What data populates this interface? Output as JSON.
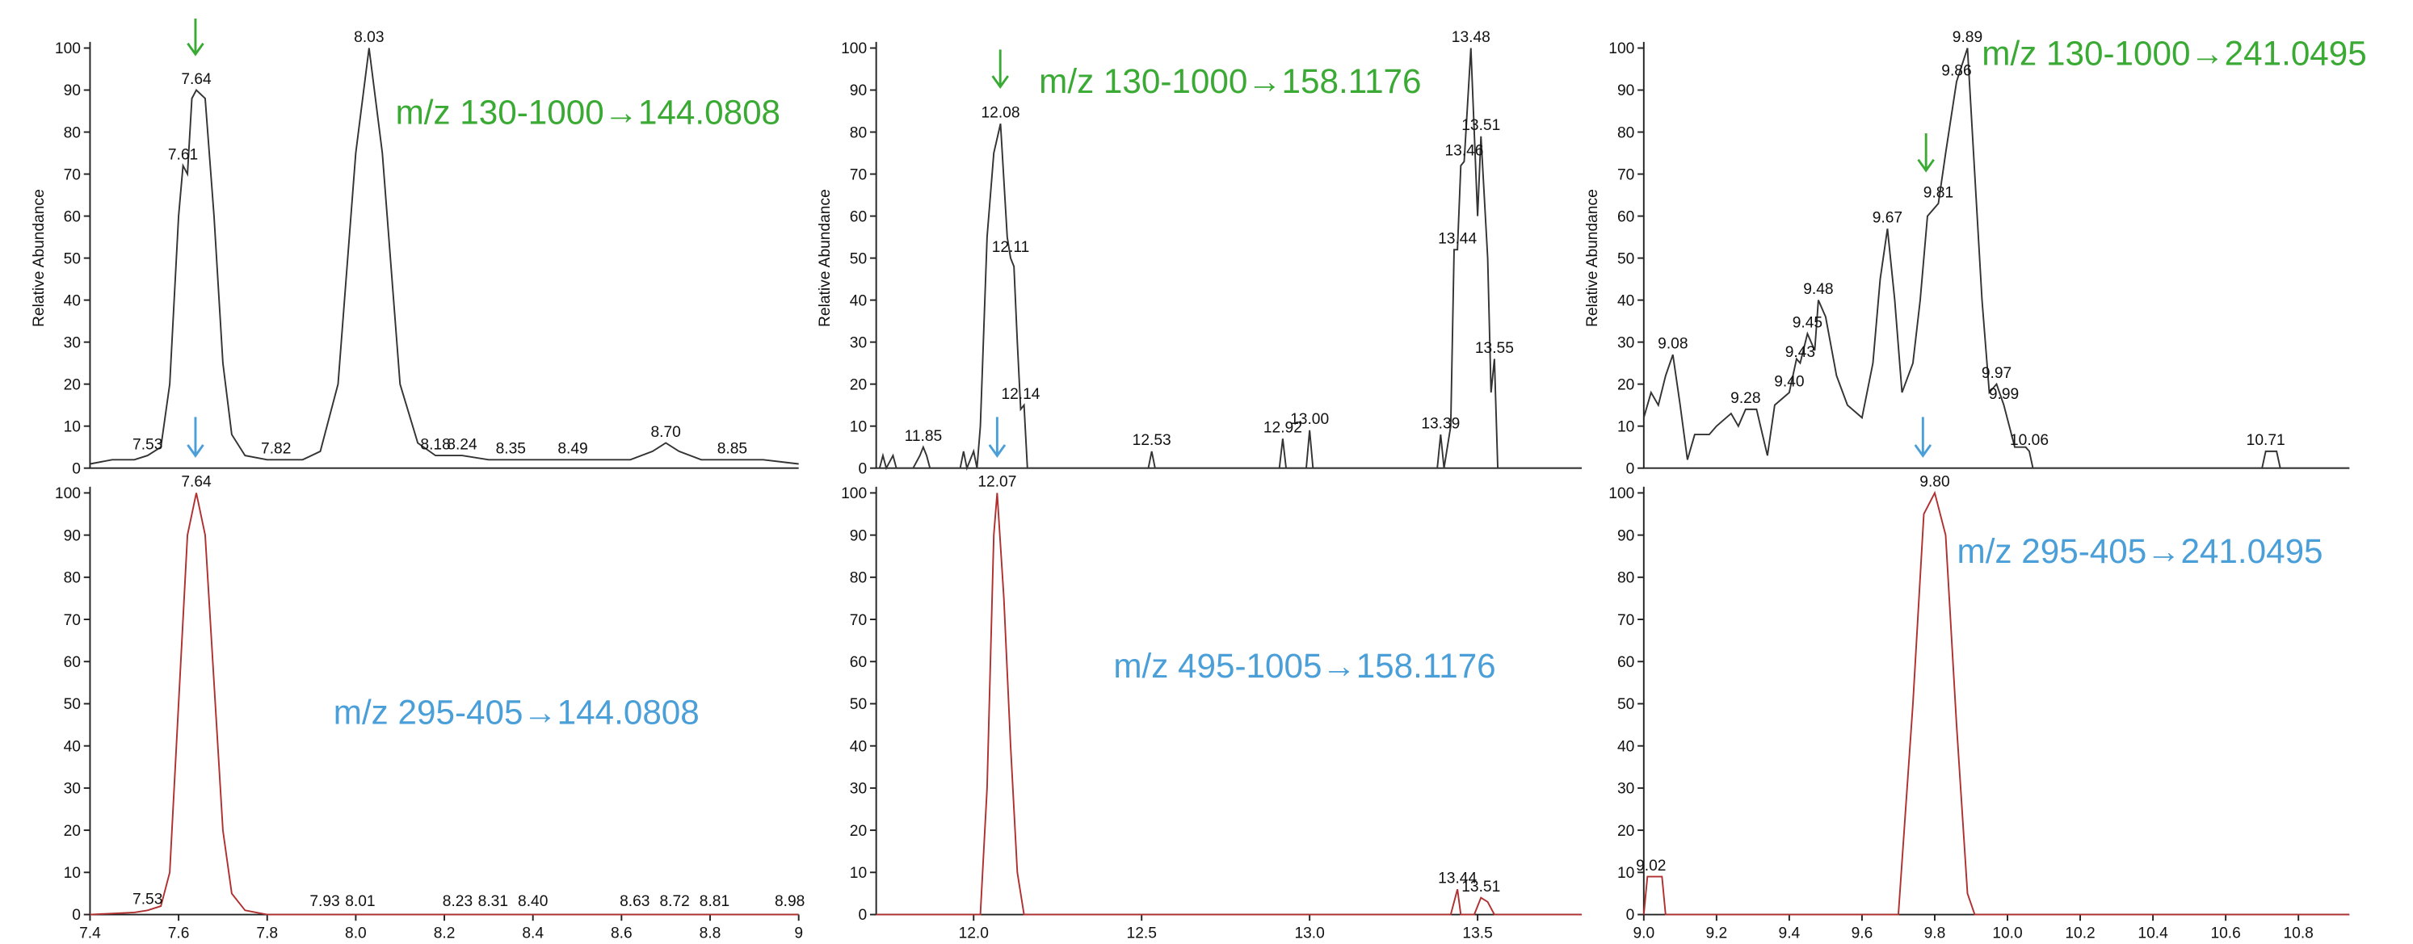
{
  "chart_data": [
    {
      "type": "line",
      "color": "#333333",
      "ylabel": "Relative Abundance",
      "trace_label": "m/z 130-1000→144.0808",
      "trace_label_color": "#3aaa35",
      "xlim": [
        7.4,
        9.0
      ],
      "ylim": [
        0,
        100
      ],
      "yticks": [
        0,
        10,
        20,
        30,
        40,
        50,
        60,
        70,
        80,
        90,
        100
      ],
      "x": [
        7.4,
        7.45,
        7.5,
        7.53,
        7.56,
        7.58,
        7.6,
        7.61,
        7.62,
        7.63,
        7.64,
        7.66,
        7.68,
        7.7,
        7.72,
        7.75,
        7.8,
        7.82,
        7.88,
        7.92,
        7.96,
        8.0,
        8.03,
        8.06,
        8.1,
        8.14,
        8.18,
        8.24,
        8.3,
        8.35,
        8.4,
        8.49,
        8.55,
        8.62,
        8.67,
        8.7,
        8.73,
        8.78,
        8.85,
        8.92,
        9.0
      ],
      "values": [
        1,
        2,
        2,
        3,
        5,
        20,
        60,
        72,
        70,
        88,
        90,
        88,
        60,
        25,
        8,
        3,
        2,
        2,
        2,
        4,
        20,
        75,
        100,
        75,
        20,
        6,
        3,
        3,
        2,
        2,
        2,
        2,
        2,
        2,
        4,
        6,
        4,
        2,
        2,
        2,
        1
      ],
      "annotations": [
        {
          "x": 7.53,
          "y": 3,
          "text": "7.53"
        },
        {
          "x": 7.61,
          "y": 72,
          "text": "7.61"
        },
        {
          "x": 7.64,
          "y": 90,
          "text": "7.64"
        },
        {
          "x": 7.82,
          "y": 2,
          "text": "7.82"
        },
        {
          "x": 8.03,
          "y": 100,
          "text": "8.03"
        },
        {
          "x": 8.18,
          "y": 3,
          "text": "8.18"
        },
        {
          "x": 8.24,
          "y": 3,
          "text": "8.24"
        },
        {
          "x": 8.35,
          "y": 2,
          "text": "8.35"
        },
        {
          "x": 8.49,
          "y": 2,
          "text": "8.49"
        },
        {
          "x": 8.7,
          "y": 6,
          "text": "8.70"
        },
        {
          "x": 8.85,
          "y": 2,
          "text": "8.85"
        }
      ]
    },
    {
      "type": "line",
      "color": "#333333",
      "ylabel": "Relative Abundance",
      "trace_label": "m/z 130-1000→158.1176",
      "trace_label_color": "#3aaa35",
      "xlim": [
        11.71,
        13.81
      ],
      "ylim": [
        0,
        100
      ],
      "yticks": [
        0,
        10,
        20,
        30,
        40,
        50,
        60,
        70,
        80,
        90,
        100
      ],
      "x": [
        11.72,
        11.73,
        11.74,
        11.76,
        11.77,
        11.82,
        11.84,
        11.85,
        11.86,
        11.87,
        11.96,
        11.97,
        11.98,
        12.0,
        12.01,
        12.02,
        12.04,
        12.06,
        12.08,
        12.1,
        12.11,
        12.12,
        12.13,
        12.14,
        12.15,
        12.16,
        12.52,
        12.53,
        12.54,
        12.91,
        12.92,
        12.93,
        12.99,
        13.0,
        13.01,
        13.38,
        13.39,
        13.4,
        13.42,
        13.43,
        13.44,
        13.45,
        13.46,
        13.48,
        13.49,
        13.5,
        13.51,
        13.53,
        13.54,
        13.55,
        13.56,
        13.81
      ],
      "values": [
        0,
        3,
        0,
        3,
        0,
        0,
        3,
        5,
        3,
        0,
        0,
        4,
        0,
        4,
        0,
        10,
        55,
        75,
        82,
        55,
        50,
        48,
        30,
        14,
        15,
        0,
        0,
        4,
        0,
        0,
        7,
        0,
        0,
        9,
        0,
        0,
        8,
        0,
        10,
        52,
        52,
        72,
        73,
        100,
        80,
        60,
        79,
        50,
        18,
        26,
        0,
        0
      ],
      "annotations": [
        {
          "x": 11.85,
          "y": 5,
          "text": "11.85"
        },
        {
          "x": 12.08,
          "y": 82,
          "text": "12.08"
        },
        {
          "x": 12.11,
          "y": 50,
          "text": "12.11"
        },
        {
          "x": 12.14,
          "y": 15,
          "text": "12.14"
        },
        {
          "x": 12.53,
          "y": 4,
          "text": "12.53"
        },
        {
          "x": 12.92,
          "y": 7,
          "text": "12.92"
        },
        {
          "x": 13.0,
          "y": 9,
          "text": "13.00"
        },
        {
          "x": 13.39,
          "y": 8,
          "text": "13.39"
        },
        {
          "x": 13.44,
          "y": 52,
          "text": "13.44"
        },
        {
          "x": 13.46,
          "y": 73,
          "text": "13.46"
        },
        {
          "x": 13.48,
          "y": 100,
          "text": "13.48"
        },
        {
          "x": 13.51,
          "y": 79,
          "text": "13.51"
        },
        {
          "x": 13.55,
          "y": 26,
          "text": "13.55"
        }
      ]
    },
    {
      "type": "line",
      "color": "#333333",
      "ylabel": "Relative Abundance",
      "trace_label": "m/z 130-1000→241.0495",
      "trace_label_color": "#3aaa35",
      "xlim": [
        9.0,
        10.94
      ],
      "ylim": [
        0,
        100
      ],
      "yticks": [
        0,
        10,
        20,
        30,
        40,
        50,
        60,
        70,
        80,
        90,
        100
      ],
      "x": [
        9.0,
        9.02,
        9.04,
        9.06,
        9.08,
        9.1,
        9.12,
        9.14,
        9.18,
        9.2,
        9.24,
        9.26,
        9.28,
        9.31,
        9.34,
        9.36,
        9.4,
        9.42,
        9.43,
        9.45,
        9.47,
        9.48,
        9.5,
        9.53,
        9.56,
        9.6,
        9.63,
        9.65,
        9.67,
        9.69,
        9.71,
        9.74,
        9.76,
        9.78,
        9.81,
        9.83,
        9.86,
        9.89,
        9.91,
        9.93,
        9.95,
        9.97,
        9.99,
        10.02,
        10.05,
        10.06,
        10.07,
        10.1,
        10.7,
        10.71,
        10.74,
        10.75,
        10.94
      ],
      "values": [
        12,
        18,
        15,
        22,
        27,
        15,
        2,
        8,
        8,
        10,
        13,
        10,
        14,
        14,
        3,
        15,
        18,
        26,
        25,
        32,
        28,
        40,
        36,
        22,
        15,
        12,
        25,
        45,
        57,
        40,
        18,
        25,
        40,
        60,
        63,
        75,
        92,
        100,
        70,
        40,
        18,
        20,
        15,
        5,
        5,
        4,
        0,
        0,
        0,
        4,
        4,
        0,
        0
      ],
      "annotations": [
        {
          "x": 9.08,
          "y": 27,
          "text": "9.08"
        },
        {
          "x": 9.28,
          "y": 14,
          "text": "9.28"
        },
        {
          "x": 9.4,
          "y": 18,
          "text": "9.40"
        },
        {
          "x": 9.43,
          "y": 25,
          "text": "9.43"
        },
        {
          "x": 9.45,
          "y": 32,
          "text": "9.45"
        },
        {
          "x": 9.48,
          "y": 40,
          "text": "9.48"
        },
        {
          "x": 9.67,
          "y": 57,
          "text": "9.67"
        },
        {
          "x": 9.81,
          "y": 63,
          "text": "9.81"
        },
        {
          "x": 9.86,
          "y": 92,
          "text": "9.86"
        },
        {
          "x": 9.89,
          "y": 100,
          "text": "9.89"
        },
        {
          "x": 9.97,
          "y": 20,
          "text": "9.97"
        },
        {
          "x": 9.99,
          "y": 15,
          "text": "9.99"
        },
        {
          "x": 10.06,
          "y": 4,
          "text": "10.06"
        },
        {
          "x": 10.71,
          "y": 4,
          "text": "10.71"
        }
      ]
    },
    {
      "type": "line",
      "color": "#b03030",
      "trace_label": "m/z 295-405→144.0808",
      "trace_label_color": "#4a9fd8",
      "xlim": [
        7.4,
        9.0
      ],
      "ylim": [
        0,
        100
      ],
      "yticks": [
        0,
        10,
        20,
        30,
        40,
        50,
        60,
        70,
        80,
        90,
        100
      ],
      "xticks": [
        7.4,
        7.6,
        7.8,
        {
          "value": 8,
          "label": "8.0"
        },
        8.2,
        8.4,
        8.6,
        8.8,
        9
      ],
      "x": [
        7.4,
        7.5,
        7.53,
        7.56,
        7.58,
        7.6,
        7.62,
        7.64,
        7.66,
        7.68,
        7.7,
        7.72,
        7.75,
        7.8,
        9.0
      ],
      "values": [
        0,
        0.5,
        1,
        2,
        10,
        50,
        90,
        100,
        90,
        55,
        20,
        5,
        1,
        0,
        0
      ],
      "annotations": [
        {
          "x": 7.53,
          "y": 1,
          "text": "7.53"
        },
        {
          "x": 7.64,
          "y": 100,
          "text": "7.64"
        },
        {
          "x": 7.93,
          "y": 0.5,
          "text": "7.93"
        },
        {
          "x": 8.01,
          "y": 0.5,
          "text": "8.01"
        },
        {
          "x": 8.23,
          "y": 0.5,
          "text": "8.23"
        },
        {
          "x": 8.31,
          "y": 0.5,
          "text": "8.31"
        },
        {
          "x": 8.4,
          "y": 0.5,
          "text": "8.40"
        },
        {
          "x": 8.63,
          "y": 0.5,
          "text": "8.63"
        },
        {
          "x": 8.72,
          "y": 0.5,
          "text": "8.72"
        },
        {
          "x": 8.81,
          "y": 0.5,
          "text": "8.81"
        },
        {
          "x": 8.98,
          "y": 0.5,
          "text": "8.98"
        }
      ]
    },
    {
      "type": "line",
      "color": "#b03030",
      "trace_label": "m/z 495-1005→158.1176",
      "trace_label_color": "#4a9fd8",
      "xlim": [
        11.71,
        13.81
      ],
      "ylim": [
        0,
        100
      ],
      "yticks": [
        0,
        10,
        20,
        30,
        40,
        50,
        60,
        70,
        80,
        90,
        100
      ],
      "xticks": [
        {
          "value": 12,
          "label": "12.0"
        },
        12.5,
        {
          "value": 13,
          "label": "13.0"
        },
        13.5
      ],
      "x": [
        11.71,
        12.02,
        12.04,
        12.06,
        12.07,
        12.09,
        12.11,
        12.13,
        12.15,
        13.42,
        13.44,
        13.45,
        13.49,
        13.51,
        13.53,
        13.55,
        13.81
      ],
      "values": [
        0,
        0,
        30,
        90,
        100,
        75,
        40,
        10,
        0,
        0,
        6,
        0,
        0,
        4,
        3,
        0,
        0
      ],
      "annotations": [
        {
          "x": 12.07,
          "y": 100,
          "text": "12.07"
        },
        {
          "x": 13.44,
          "y": 6,
          "text": "13.44"
        },
        {
          "x": 13.51,
          "y": 4,
          "text": "13.51"
        }
      ]
    },
    {
      "type": "line",
      "color": "#b03030",
      "trace_label": "m/z 295-405→241.0495",
      "trace_label_color": "#4a9fd8",
      "xlim": [
        9.0,
        10.94
      ],
      "ylim": [
        0,
        100
      ],
      "yticks": [
        0,
        10,
        20,
        30,
        40,
        50,
        60,
        70,
        80,
        90,
        100
      ],
      "xticks": [
        {
          "value": 9,
          "label": "9.0"
        },
        9.2,
        9.4,
        9.6,
        9.8,
        {
          "value": 10,
          "label": "10.0"
        },
        10.2,
        10.4,
        10.6,
        10.8
      ],
      "x": [
        9.0,
        9.01,
        9.05,
        9.06,
        9.7,
        9.74,
        9.77,
        9.8,
        9.83,
        9.86,
        9.89,
        9.91,
        10.94
      ],
      "values": [
        0,
        9,
        9,
        0,
        0,
        50,
        95,
        100,
        90,
        45,
        5,
        0,
        0
      ],
      "annotations": [
        {
          "x": 9.02,
          "y": 9,
          "text": "9.02"
        },
        {
          "x": 9.8,
          "y": 100,
          "text": "9.80"
        }
      ]
    }
  ]
}
